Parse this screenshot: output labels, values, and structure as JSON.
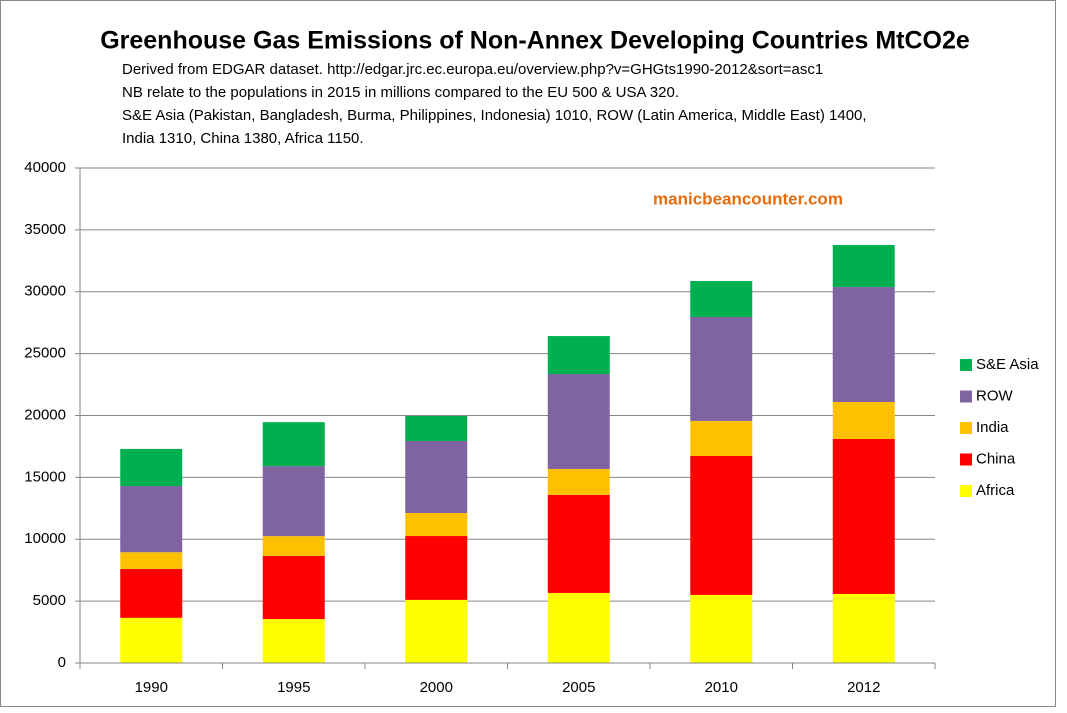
{
  "chart_data": {
    "type": "stacked_bar",
    "title": "Greenhouse Gas Emissions of Non-Annex Developing Countries MtCO2e",
    "notes": [
      "Derived from EDGAR dataset. http://edgar.jrc.ec.europa.eu/overview.php?v=GHGts1990-2012&sort=asc1",
      "NB relate to the populations in 2015 in millions compared to the EU 500 & USA 320.",
      "S&E Asia (Pakistan, Bangladesh, Burma, Philippines,  Indonesia) 1010, ROW (Latin America, Middle East) 1400,",
      "India 1310, China 1380, Africa 1150."
    ],
    "annotation": "manicbeancounter.com",
    "categories": [
      "1990",
      "1995",
      "2000",
      "2005",
      "2010",
      "2012"
    ],
    "series": [
      {
        "name": "Africa",
        "color": "#ffff00",
        "values": [
          3650,
          3550,
          5100,
          5660,
          5500,
          5580
        ]
      },
      {
        "name": "China",
        "color": "#ff0000",
        "values": [
          3950,
          5100,
          5160,
          7920,
          11230,
          12520
        ]
      },
      {
        "name": "India",
        "color": "#ffc000",
        "values": [
          1350,
          1600,
          1860,
          2100,
          2830,
          2990
        ]
      },
      {
        "name": "ROW",
        "color": "#8064a2",
        "values": [
          5350,
          5660,
          5820,
          7670,
          8400,
          9290
        ]
      },
      {
        "name": "S&E Asia",
        "color": "#00b050",
        "values": [
          3000,
          3550,
          2020,
          3070,
          2910,
          3400
        ]
      }
    ],
    "ylim": [
      0,
      40000
    ],
    "yticks": [
      0,
      5000,
      10000,
      15000,
      20000,
      25000,
      30000,
      35000,
      40000
    ],
    "grid": true,
    "legend": "right"
  }
}
